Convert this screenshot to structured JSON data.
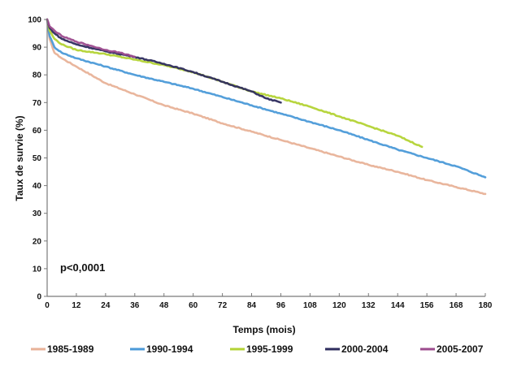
{
  "chart_data": {
    "type": "line",
    "title": "",
    "xlabel": "Temps (mois)",
    "ylabel": "Taux de survie (%)",
    "xlim": [
      0,
      180
    ],
    "ylim": [
      0,
      100
    ],
    "xticks": [
      0,
      12,
      24,
      36,
      48,
      60,
      72,
      84,
      96,
      108,
      120,
      132,
      144,
      156,
      168,
      180
    ],
    "yticks": [
      0,
      10,
      20,
      30,
      40,
      50,
      60,
      70,
      80,
      90,
      100
    ],
    "grid": false,
    "legend_position": "bottom",
    "annotation": "p<0,0001",
    "series": [
      {
        "name": "1985-1989",
        "color": "#e8b298",
        "x": [
          0,
          1,
          3,
          6,
          12,
          24,
          36,
          48,
          60,
          72,
          84,
          96,
          108,
          120,
          132,
          144,
          156,
          168,
          180
        ],
        "y": [
          100,
          93,
          88,
          86,
          83,
          77,
          73,
          69,
          66,
          62.5,
          59.5,
          56.5,
          53.5,
          50.5,
          47.5,
          45,
          42,
          39.5,
          37
        ]
      },
      {
        "name": "1990-1994",
        "color": "#4b9ad8",
        "x": [
          0,
          1,
          3,
          6,
          12,
          24,
          36,
          48,
          60,
          72,
          84,
          96,
          108,
          120,
          132,
          144,
          156,
          168,
          180
        ],
        "y": [
          100,
          94,
          90,
          88,
          86,
          83,
          80,
          77.5,
          75,
          72,
          69,
          66,
          63,
          60,
          56.5,
          53,
          50,
          47,
          43
        ]
      },
      {
        "name": "1995-1999",
        "color": "#b3d334",
        "x": [
          0,
          1,
          3,
          6,
          12,
          24,
          36,
          48,
          60,
          72,
          84,
          96,
          108,
          120,
          132,
          144,
          154
        ],
        "y": [
          100,
          96,
          93,
          91,
          89,
          87.5,
          85.5,
          83.5,
          81,
          77.5,
          74,
          71.5,
          68.5,
          65,
          61.5,
          58,
          54
        ]
      },
      {
        "name": "2000-2004",
        "color": "#2e2c5e",
        "x": [
          0,
          1,
          3,
          6,
          12,
          24,
          36,
          48,
          60,
          72,
          84,
          90,
          96
        ],
        "y": [
          100,
          97,
          95,
          93,
          91,
          88.5,
          86.5,
          84,
          81,
          77.5,
          74,
          71.5,
          70
        ]
      },
      {
        "name": "2005-2007",
        "color": "#9c4b8e",
        "x": [
          0,
          1,
          3,
          6,
          12,
          18,
          24,
          30,
          36
        ],
        "y": [
          100,
          97.5,
          96,
          94,
          92,
          90.5,
          89,
          88,
          86.5
        ]
      }
    ]
  }
}
